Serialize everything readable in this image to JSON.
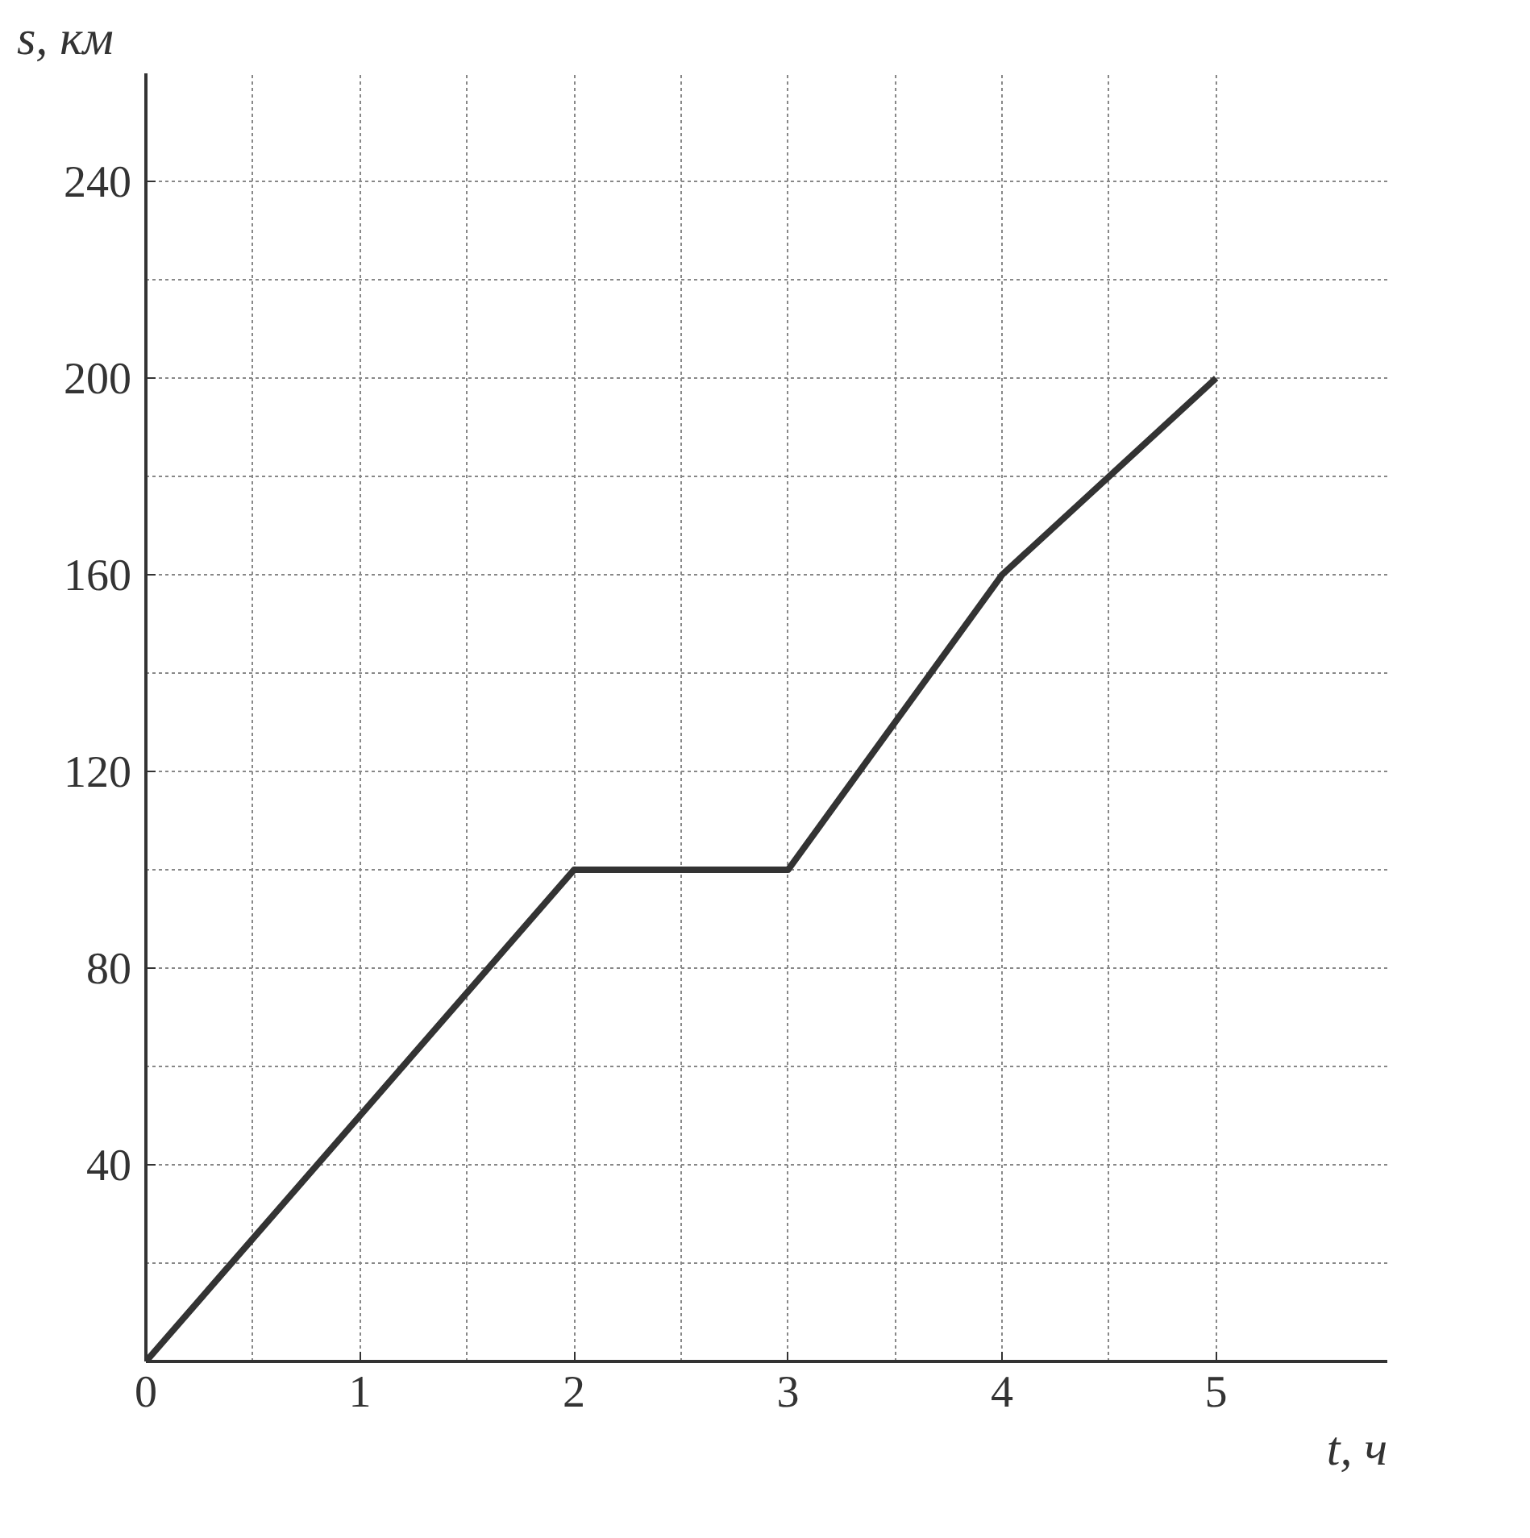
{
  "chart_data": {
    "type": "line",
    "xlabel": "t, ч",
    "ylabel": "s, км",
    "x": [
      0,
      1,
      2,
      3,
      4,
      5
    ],
    "series": [
      {
        "color": "#333333",
        "values": [
          0,
          50,
          100,
          100,
          160,
          200
        ]
      }
    ],
    "xlim": [
      0,
      5.8
    ],
    "ylim": [
      0,
      262
    ],
    "xticks": [
      0,
      1,
      2,
      3,
      4,
      5
    ],
    "yticks": [
      {
        "value": 0,
        "label": null
      },
      40,
      80,
      120,
      160,
      200,
      240
    ],
    "grid": true,
    "marker": "none",
    "line_style": "solid"
  }
}
